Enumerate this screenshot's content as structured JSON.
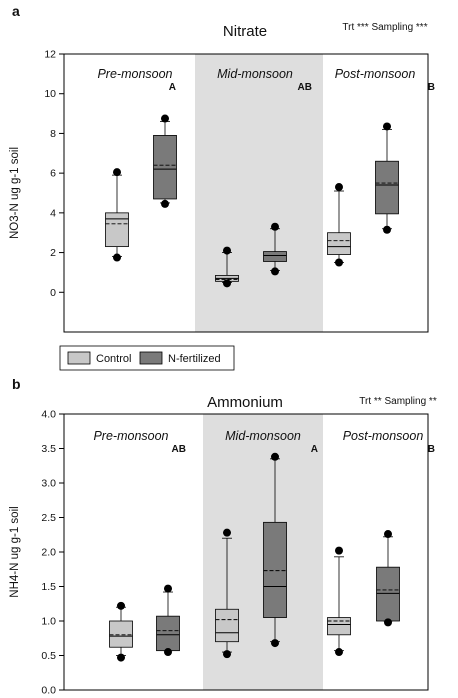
{
  "chart_data": [
    {
      "type": "box",
      "panel": "a",
      "title": "Nitrate",
      "stats_note": "Trt *** Sampling ***",
      "ylabel": "NO3-N ug g-1 soil",
      "ylim": [
        -2,
        12
      ],
      "yticks": [
        0,
        2,
        4,
        6,
        8,
        10,
        12
      ],
      "yticks_labels": [
        "0",
        "2",
        "4",
        "6",
        "8",
        "10",
        "12"
      ],
      "shaded_period": 1,
      "periods": [
        {
          "label": "Pre-monsoon",
          "group_letter": "A"
        },
        {
          "label": "Mid-monsoon",
          "group_letter": "AB"
        },
        {
          "label": "Post-monsoon",
          "group_letter": "B"
        }
      ],
      "series": [
        {
          "name": "Control",
          "color": "#c8c8c8",
          "boxes": [
            {
              "whisker_low": 1.8,
              "q1": 2.3,
              "median": 3.7,
              "mean": 3.45,
              "q3": 4.0,
              "whisker_high": 5.9,
              "outlier_low": 1.75,
              "outlier_high": 6.05
            },
            {
              "whisker_low": 0.5,
              "q1": 0.55,
              "median": 0.7,
              "mean": 0.65,
              "q3": 0.85,
              "whisker_high": 2.0,
              "outlier_low": 0.45,
              "outlier_high": 2.1
            },
            {
              "whisker_low": 1.5,
              "q1": 1.9,
              "median": 2.3,
              "mean": 2.6,
              "q3": 3.0,
              "whisker_high": 5.1,
              "outlier_low": 1.5,
              "outlier_high": 5.3
            }
          ]
        },
        {
          "name": "N-fertilized",
          "color": "#7a7a7a",
          "boxes": [
            {
              "whisker_low": 4.5,
              "q1": 4.7,
              "median": 6.2,
              "mean": 6.4,
              "q3": 7.9,
              "whisker_high": 8.6,
              "outlier_low": 4.45,
              "outlier_high": 8.75
            },
            {
              "whisker_low": 1.1,
              "q1": 1.55,
              "median": 1.85,
              "mean": 1.85,
              "q3": 2.05,
              "whisker_high": 3.2,
              "outlier_low": 1.05,
              "outlier_high": 3.3
            },
            {
              "whisker_low": 3.2,
              "q1": 3.95,
              "median": 5.4,
              "mean": 5.5,
              "q3": 6.6,
              "whisker_high": 8.2,
              "outlier_low": 3.15,
              "outlier_high": 8.35
            }
          ]
        }
      ],
      "legend": [
        "Control",
        "N-fertilized"
      ]
    },
    {
      "type": "box",
      "panel": "b",
      "title": "Ammonium",
      "stats_note": "Trt ** Sampling **",
      "ylabel": "NH4-N ug g-1 soil",
      "ylim": [
        0,
        4
      ],
      "yticks": [
        0,
        0.5,
        1,
        1.5,
        2,
        2.5,
        3,
        3.5,
        4
      ],
      "yticks_labels": [
        "0.0",
        "0.5",
        "1.0",
        "1.5",
        "2.0",
        "2.5",
        "3.0",
        "3.5",
        "4.0"
      ],
      "shaded_period": 1,
      "periods": [
        {
          "label": "Pre-monsoon",
          "group_letter": "AB"
        },
        {
          "label": "Mid-monsoon",
          "group_letter": "A"
        },
        {
          "label": "Post-monsoon",
          "group_letter": "B"
        }
      ],
      "series": [
        {
          "name": "Control",
          "color": "#c8c8c8",
          "boxes": [
            {
              "whisker_low": 0.5,
              "q1": 0.62,
              "median": 0.78,
              "mean": 0.8,
              "q3": 1.0,
              "whisker_high": 1.2,
              "outlier_low": 0.47,
              "outlier_high": 1.22
            },
            {
              "whisker_low": 0.55,
              "q1": 0.7,
              "median": 0.83,
              "mean": 1.02,
              "q3": 1.17,
              "whisker_high": 2.2,
              "outlier_low": 0.52,
              "outlier_high": 2.28
            },
            {
              "whisker_low": 0.57,
              "q1": 0.8,
              "median": 0.95,
              "mean": 1.0,
              "q3": 1.05,
              "whisker_high": 1.93,
              "outlier_low": 0.55,
              "outlier_high": 2.02
            }
          ]
        },
        {
          "name": "N-fertilized",
          "color": "#7a7a7a",
          "boxes": [
            {
              "whisker_low": 0.57,
              "q1": 0.57,
              "median": 0.8,
              "mean": 0.86,
              "q3": 1.07,
              "whisker_high": 1.42,
              "outlier_low": 0.55,
              "outlier_high": 1.47
            },
            {
              "whisker_low": 0.7,
              "q1": 1.05,
              "median": 1.5,
              "mean": 1.73,
              "q3": 2.43,
              "whisker_high": 3.35,
              "outlier_low": 0.68,
              "outlier_high": 3.38
            },
            {
              "whisker_low": 1.0,
              "q1": 1.0,
              "median": 1.4,
              "mean": 1.45,
              "q3": 1.78,
              "whisker_high": 2.22,
              "outlier_low": 0.98,
              "outlier_high": 2.26
            }
          ]
        }
      ]
    }
  ]
}
